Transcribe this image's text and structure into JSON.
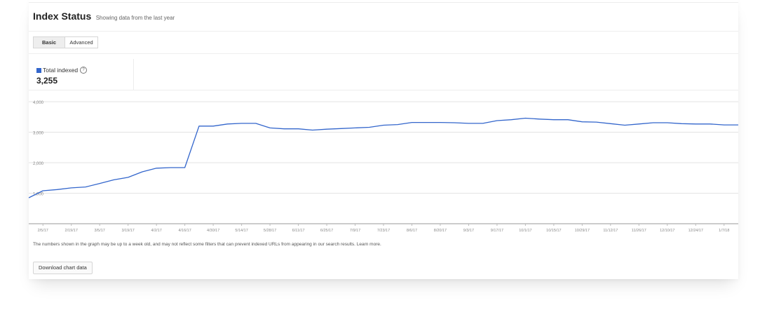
{
  "header": {
    "title": "Index Status",
    "subtitle": "Showing data from the last year"
  },
  "tabs": [
    {
      "label": "Basic",
      "active": true
    },
    {
      "label": "Advanced",
      "active": false
    }
  ],
  "metric": {
    "label": "Total indexed",
    "value": "3,255",
    "color": "#3366cc",
    "help_icon": "help-circle-icon"
  },
  "chart_data": {
    "type": "line",
    "title": "",
    "xlabel": "",
    "ylabel": "",
    "ylim": [
      0,
      4000
    ],
    "yticks": [
      {
        "value": 1000,
        "label": "1,000"
      },
      {
        "value": 2000,
        "label": "2,000"
      },
      {
        "value": 3000,
        "label": "3,000"
      },
      {
        "value": 4000,
        "label": "4,000"
      }
    ],
    "grid": true,
    "x_tick_labels": [
      "2/5/17",
      "2/19/17",
      "3/5/17",
      "3/19/17",
      "4/2/17",
      "4/16/17",
      "4/30/17",
      "5/14/17",
      "5/28/17",
      "6/11/17",
      "6/25/17",
      "7/9/17",
      "7/23/17",
      "8/6/17",
      "8/20/17",
      "9/3/17",
      "9/17/17",
      "10/1/17",
      "10/15/17",
      "10/29/17",
      "11/12/17",
      "11/26/17",
      "12/10/17",
      "12/24/17",
      "1/7/18"
    ],
    "series": [
      {
        "name": "Total indexed",
        "color": "#3366cc",
        "x": [
          "1/29/17",
          "2/5/17",
          "2/12/17",
          "2/19/17",
          "2/26/17",
          "3/5/17",
          "3/12/17",
          "3/19/17",
          "3/26/17",
          "4/2/17",
          "4/9/17",
          "4/16/17",
          "4/23/17",
          "4/30/17",
          "5/7/17",
          "5/14/17",
          "5/21/17",
          "5/28/17",
          "6/4/17",
          "6/11/17",
          "6/18/17",
          "6/25/17",
          "7/2/17",
          "7/9/17",
          "7/16/17",
          "7/23/17",
          "7/30/17",
          "8/6/17",
          "8/13/17",
          "8/20/17",
          "8/27/17",
          "9/3/17",
          "9/10/17",
          "9/17/17",
          "9/24/17",
          "10/1/17",
          "10/8/17",
          "10/15/17",
          "10/22/17",
          "10/29/17",
          "11/5/17",
          "11/12/17",
          "11/19/17",
          "11/26/17",
          "12/3/17",
          "12/10/17",
          "12/17/17",
          "12/24/17",
          "12/31/17",
          "1/7/18",
          "1/14/18"
        ],
        "values": [
          850,
          1080,
          1120,
          1175,
          1205,
          1320,
          1440,
          1520,
          1700,
          1820,
          1840,
          1840,
          3200,
          3200,
          3270,
          3290,
          3290,
          3140,
          3110,
          3110,
          3070,
          3100,
          3120,
          3140,
          3160,
          3230,
          3250,
          3320,
          3320,
          3320,
          3310,
          3290,
          3290,
          3380,
          3410,
          3460,
          3430,
          3410,
          3410,
          3340,
          3330,
          3280,
          3230,
          3270,
          3310,
          3310,
          3280,
          3270,
          3270,
          3240,
          3240
        ]
      }
    ]
  },
  "footnote": "The numbers shown in the graph may be up to a week old, and may not reflect some filters that can prevent indexed URLs from appearing in our search results. Learn more.",
  "buttons": {
    "download": "Download chart data"
  }
}
